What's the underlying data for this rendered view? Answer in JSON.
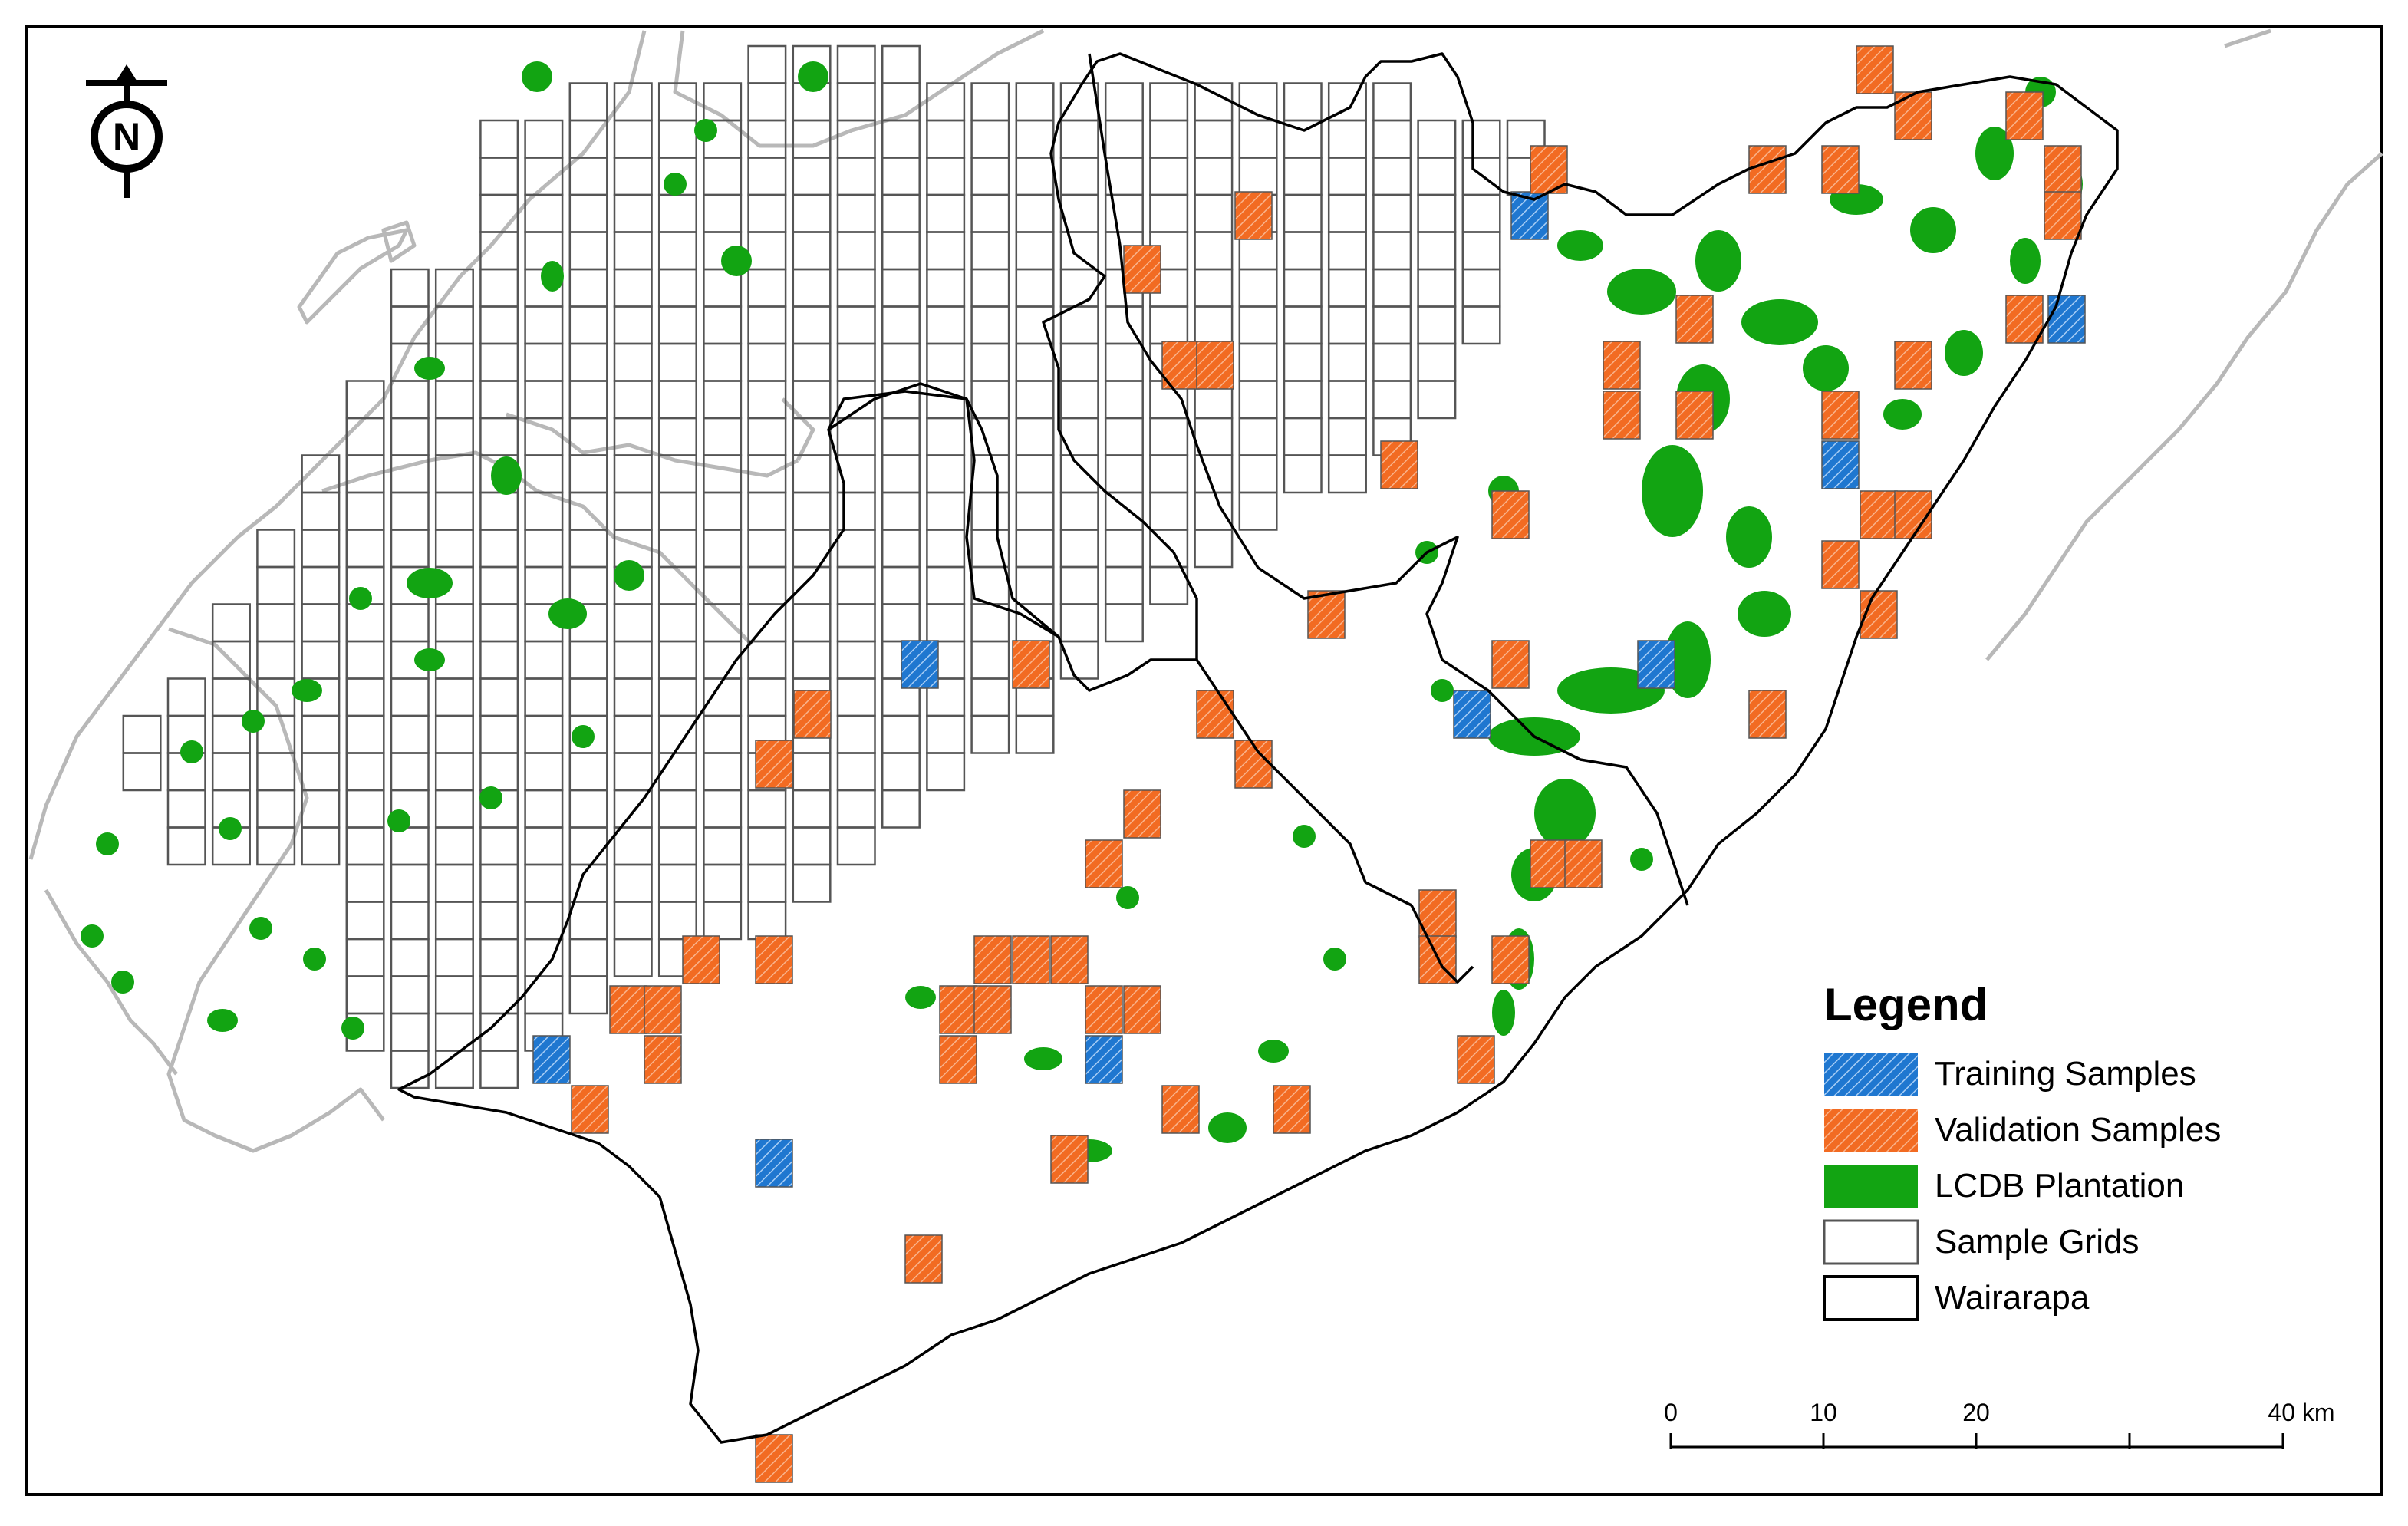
{
  "legend": {
    "title": "Legend",
    "items": [
      {
        "key": "training",
        "label": "Training Samples",
        "fill": "#1f77d0",
        "hatch": true
      },
      {
        "key": "validation",
        "label": "Validation Samples",
        "fill": "#f26b22",
        "hatch": true
      },
      {
        "key": "plantation",
        "label": "LCDB Plantation",
        "fill": "#12a412",
        "hatch": false
      },
      {
        "key": "grids",
        "label": "Sample Grids",
        "fill": "#ffffff",
        "stroke": "#555555"
      },
      {
        "key": "region",
        "label": "Wairarapa",
        "fill": "#ffffff",
        "stroke": "#000000"
      }
    ]
  },
  "north_arrow": {
    "letter": "N"
  },
  "scale_bar": {
    "labels": [
      "0",
      "10",
      "20",
      "40 km"
    ]
  },
  "colors": {
    "training": "#1f77d0",
    "validation": "#f26b22",
    "plantation": "#12a412",
    "grid": "#555555",
    "coast": "#b8b8b8",
    "border": "#000000"
  }
}
